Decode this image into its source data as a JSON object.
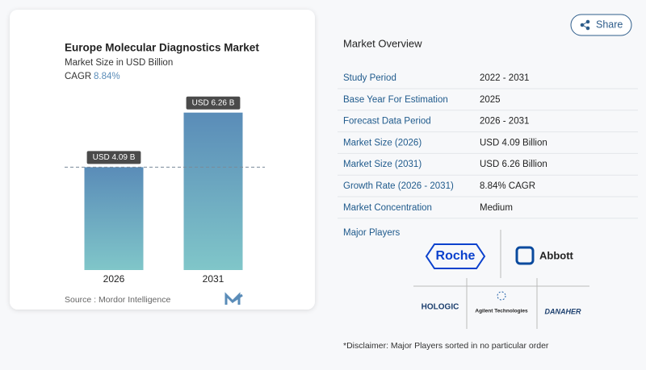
{
  "chart_data": {
    "type": "bar",
    "title": "Europe Molecular Diagnostics Market",
    "subtitle": "Market Size in USD Billion",
    "cagr_label": "CAGR",
    "cagr": "8.84%",
    "categories": [
      "2026",
      "2031"
    ],
    "values": [
      4.09,
      6.26
    ],
    "value_labels": [
      "USD 4.09 B",
      "USD 6.26 B"
    ],
    "source": "Source :  Mordor Intelligence"
  },
  "share": "Share",
  "overview": {
    "title": "Market Overview",
    "rows": [
      [
        "Study Period",
        "2022 - 2031"
      ],
      [
        "Base Year For Estimation",
        "2025"
      ],
      [
        "Forecast Data Period",
        "2026 - 2031"
      ],
      [
        "Market Size (2026)",
        "USD 4.09 Billion"
      ],
      [
        "Market Size (2031)",
        "USD 6.26 Billion"
      ],
      [
        "Growth Rate (2026 - 2031)",
        "8.84% CAGR"
      ],
      [
        "Market Concentration",
        "Medium"
      ]
    ]
  },
  "players": {
    "title": "Major Players",
    "logos": [
      "Roche",
      "Abbott",
      "HOLOGIC",
      "Agilent Technologies",
      "DANAHER"
    ]
  },
  "disclaimer": "*Disclaimer: Major Players sorted in no particular order"
}
